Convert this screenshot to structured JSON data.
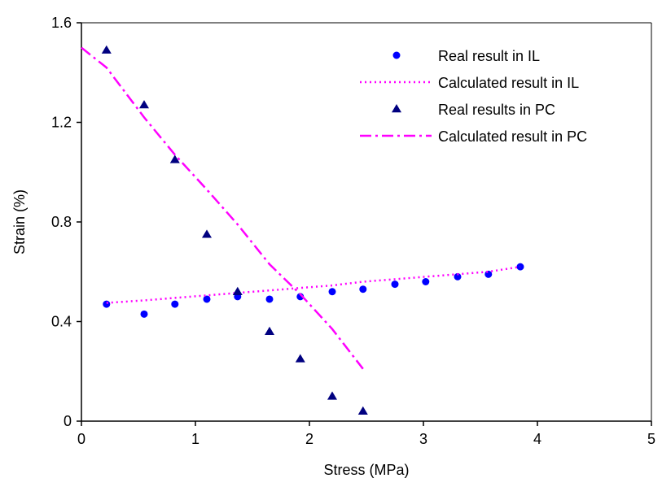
{
  "chart_data": {
    "type": "scatter",
    "title": "",
    "xlabel": "Stress (MPa)",
    "ylabel": "Strain (%)",
    "xlim": [
      0,
      5
    ],
    "ylim": [
      0,
      1.6
    ],
    "x_ticks": [
      "0",
      "1",
      "2",
      "3",
      "4",
      "5"
    ],
    "y_ticks": [
      "0",
      "0.4",
      "0.8",
      "1.2",
      "1.6"
    ],
    "grid": false,
    "legend_position": "top-right",
    "series": [
      {
        "name": "Real result in IL",
        "kind": "points",
        "marker": "circle",
        "color": "#0000ff",
        "x": [
          0.22,
          0.55,
          0.82,
          1.1,
          1.37,
          1.65,
          1.92,
          2.2,
          2.47,
          2.75,
          3.02,
          3.3,
          3.57,
          3.85
        ],
        "y": [
          0.47,
          0.43,
          0.47,
          0.49,
          0.5,
          0.49,
          0.5,
          0.52,
          0.53,
          0.55,
          0.56,
          0.58,
          0.59,
          0.62
        ]
      },
      {
        "name": "Calculated result in IL",
        "kind": "line",
        "dash": "dotted",
        "color": "#ff00ff",
        "x": [
          0.22,
          0.55,
          0.82,
          1.1,
          1.37,
          1.65,
          1.92,
          2.2,
          2.47,
          2.75,
          3.02,
          3.3,
          3.57,
          3.85
        ],
        "y": [
          0.475,
          0.485,
          0.495,
          0.505,
          0.515,
          0.525,
          0.535,
          0.545,
          0.56,
          0.57,
          0.58,
          0.59,
          0.6,
          0.62
        ]
      },
      {
        "name": "Real results in PC",
        "kind": "points",
        "marker": "triangle",
        "color": "#000080",
        "x": [
          0.22,
          0.55,
          0.82,
          1.1,
          1.37,
          1.65,
          1.92,
          2.2,
          2.47
        ],
        "y": [
          1.49,
          1.27,
          1.05,
          0.75,
          0.52,
          0.36,
          0.25,
          0.1,
          0.04
        ]
      },
      {
        "name": "Calculated result in PC",
        "kind": "line",
        "dash": "dash-dot",
        "color": "#ff00ff",
        "x": [
          0,
          0.22,
          0.55,
          0.82,
          1.1,
          1.37,
          1.65,
          1.92,
          2.2,
          2.47
        ],
        "y": [
          1.5,
          1.42,
          1.22,
          1.07,
          0.93,
          0.79,
          0.63,
          0.51,
          0.37,
          0.21
        ]
      }
    ]
  }
}
